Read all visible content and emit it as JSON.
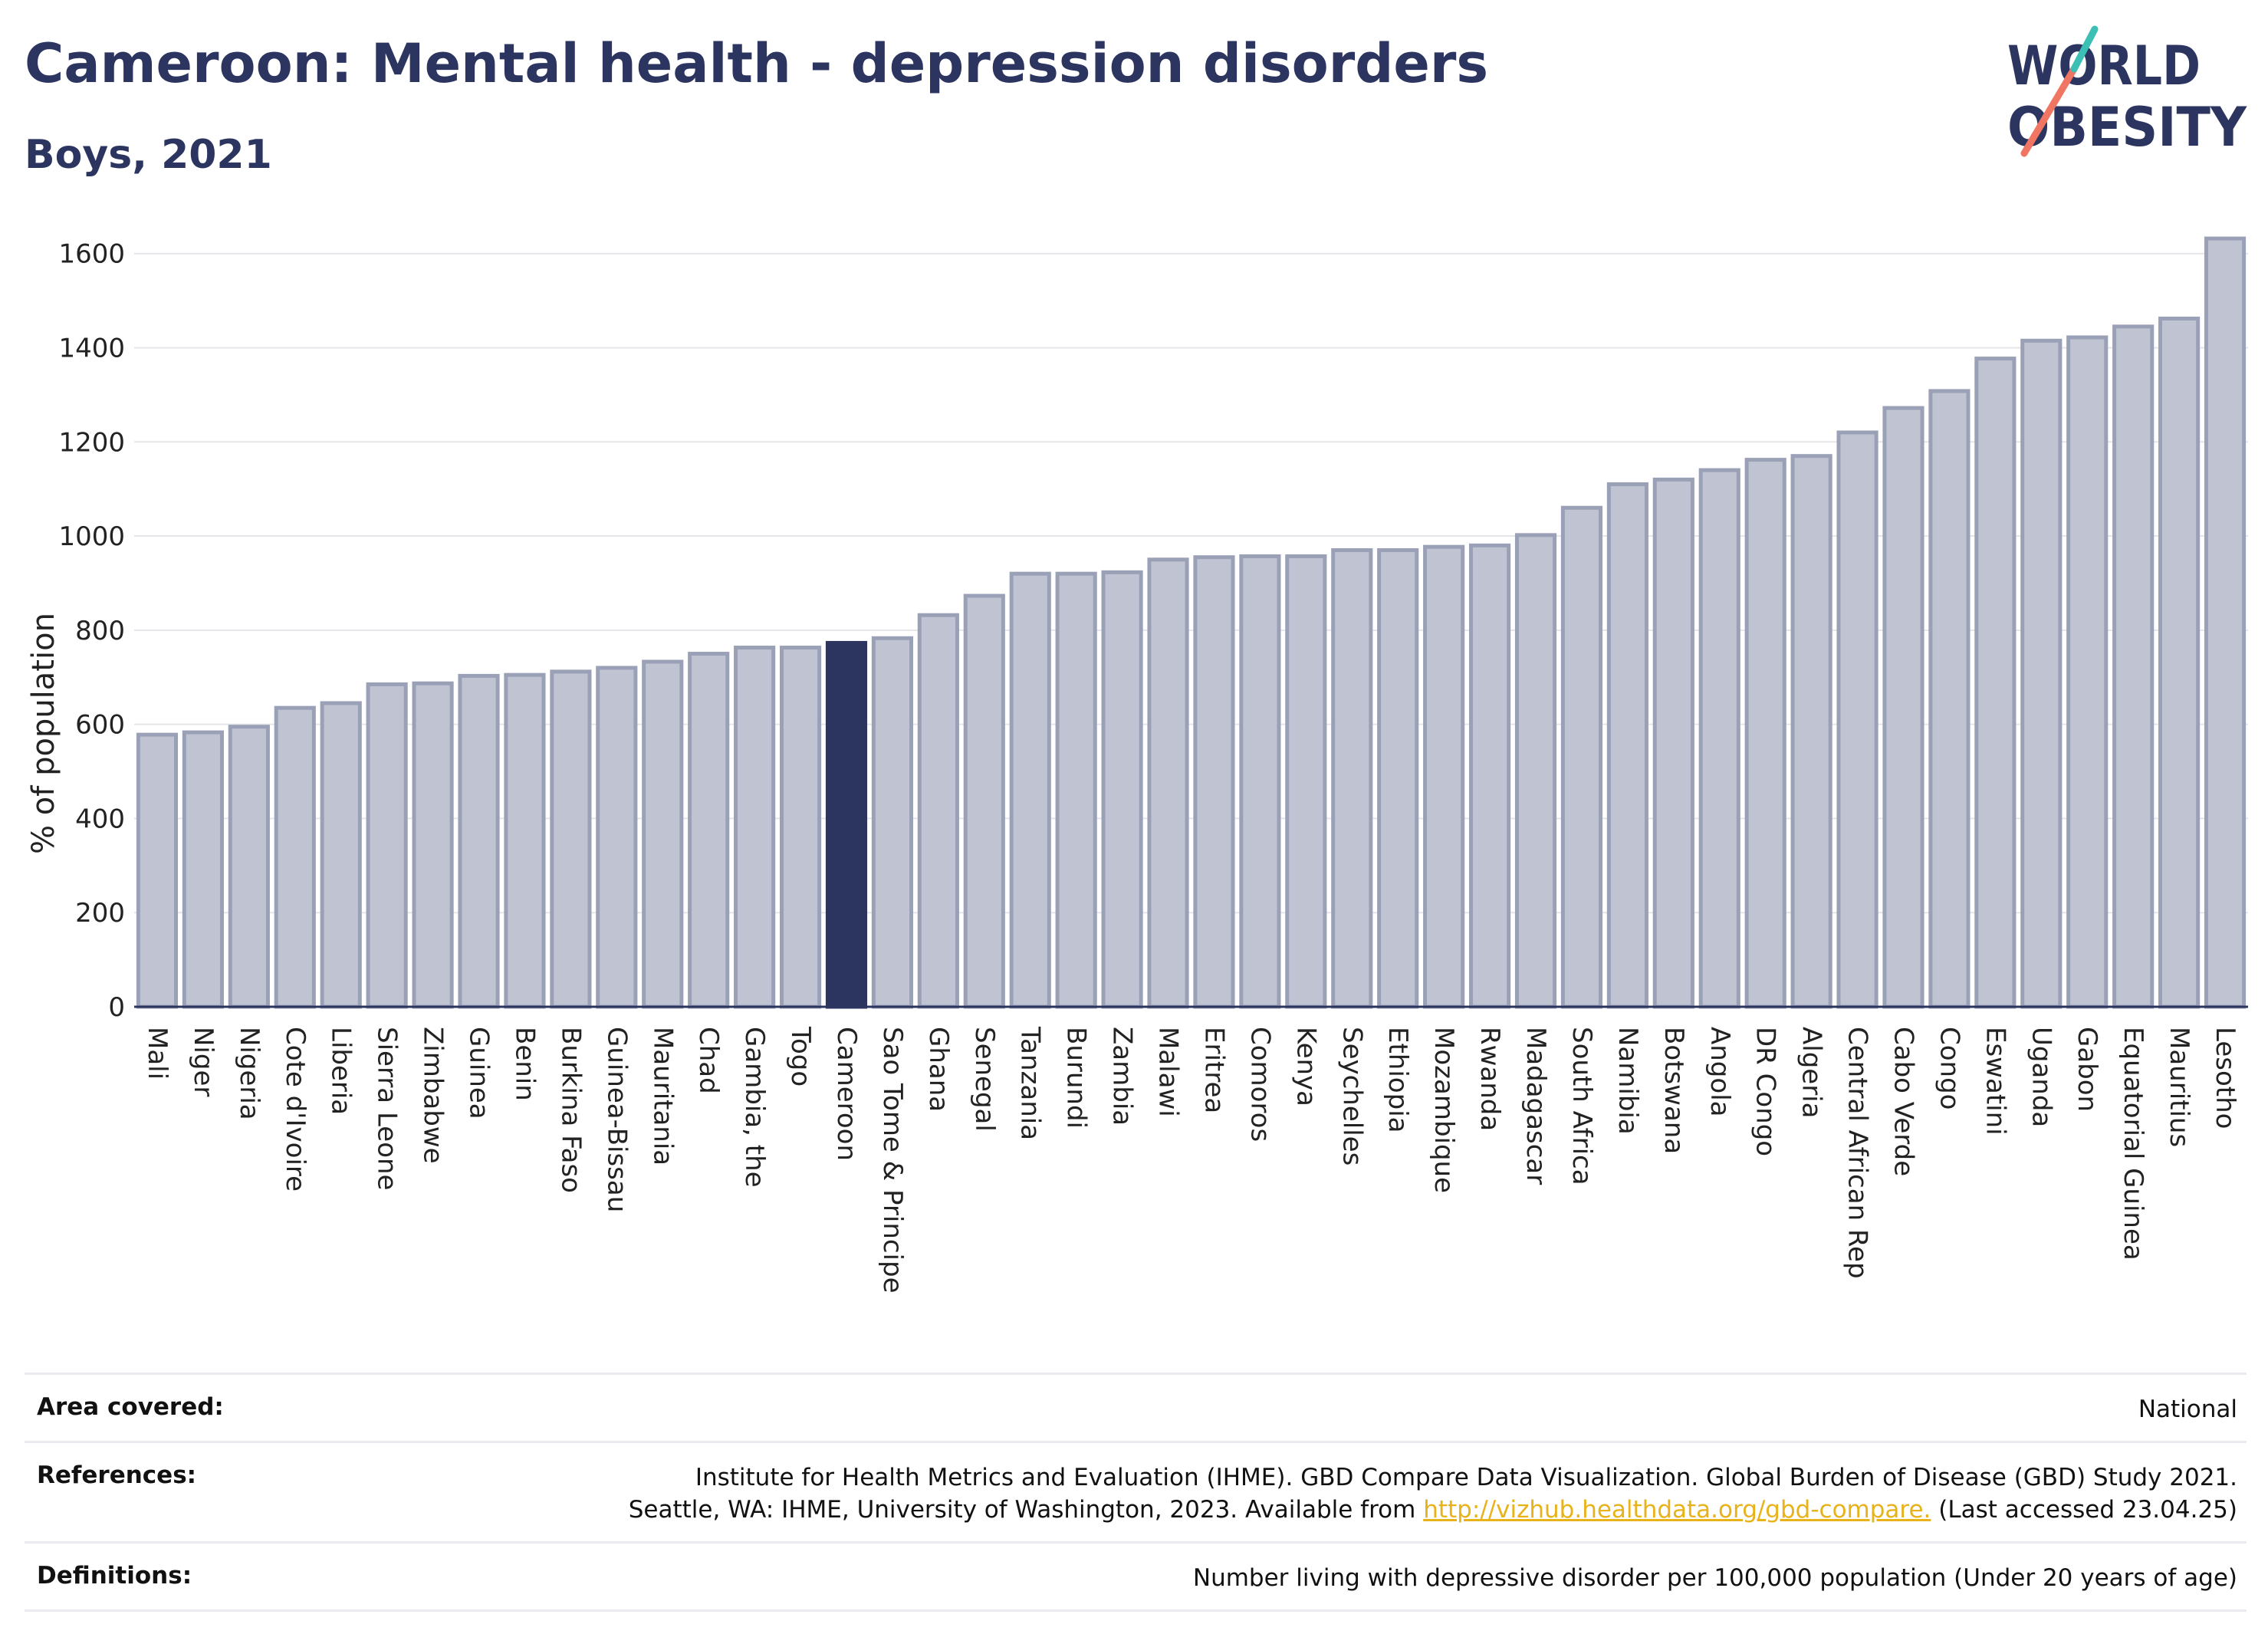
{
  "header": {
    "title": "Cameroon: Mental health - depression disorders",
    "subtitle": "Boys, 2021"
  },
  "logo": {
    "line1": "WORLD",
    "line2": "OBESITY",
    "accent_colors": [
      "#f07562",
      "#3cbfb4"
    ]
  },
  "chart_data": {
    "type": "bar",
    "ylabel": "% of population",
    "xlabel": "",
    "ylim": [
      0,
      1650
    ],
    "yticks": [
      0,
      200,
      400,
      600,
      800,
      1000,
      1200,
      1400,
      1600
    ],
    "grid": true,
    "highlight": "Cameroon",
    "bar_color": "#c0c4d2",
    "highlight_color": "#2c3560",
    "categories": [
      "Mali",
      "Niger",
      "Nigeria",
      "Cote d'Ivoire",
      "Liberia",
      "Sierra Leone",
      "Zimbabwe",
      "Guinea",
      "Benin",
      "Burkina Faso",
      "Guinea-Bissau",
      "Mauritania",
      "Chad",
      "Gambia, the",
      "Togo",
      "Cameroon",
      "Sao Tome & Principe",
      "Ghana",
      "Senegal",
      "Tanzania",
      "Burundi",
      "Zambia",
      "Malawi",
      "Eritrea",
      "Comoros",
      "Kenya",
      "Seychelles",
      "Ethiopia",
      "Mozambique",
      "Rwanda",
      "Madagascar",
      "South Africa",
      "Namibia",
      "Botswana",
      "Angola",
      "DR Congo",
      "Algeria",
      "Central African Rep",
      "Cabo Verde",
      "Congo",
      "Eswatini",
      "Uganda",
      "Gabon",
      "Equatorial Guinea",
      "Mauritius",
      "Lesotho"
    ],
    "values": [
      578,
      583,
      595,
      635,
      645,
      685,
      687,
      703,
      705,
      712,
      720,
      733,
      750,
      763,
      763,
      773,
      783,
      832,
      873,
      920,
      920,
      923,
      950,
      955,
      957,
      957,
      970,
      970,
      977,
      980,
      1002,
      1060,
      1110,
      1120,
      1140,
      1162,
      1170,
      1220,
      1272,
      1308,
      1377,
      1415,
      1422,
      1445,
      1462,
      1632
    ]
  },
  "footer": {
    "area_label": "Area covered:",
    "area_value": "National",
    "references_label": "References:",
    "references_line1": "Institute for Health Metrics and Evaluation (IHME). GBD Compare Data Visualization. Global Burden of Disease (GBD) Study 2021.",
    "references_line2_prefix": "Seattle, WA: IHME, University of Washington, 2023. Available from ",
    "references_link": "http://vizhub.healthdata.org/gbd-compare.",
    "references_line2_suffix": " (Last accessed 23.04.25)",
    "definitions_label": "Definitions:",
    "definitions_value": "Number living with depressive disorder per 100,000 population (Under 20 years of age)"
  }
}
